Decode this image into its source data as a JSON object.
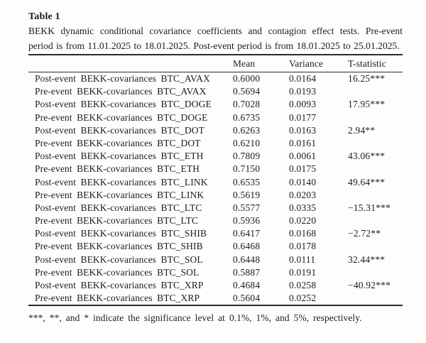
{
  "page": {
    "background_color": "#fdfdfc",
    "text_color": "#1d1d1d",
    "rule_color": "#2b2b2b"
  },
  "table": {
    "title": "Table 1",
    "caption": "BEKK dynamic conditional covariance coefficients and contagion effect tests. Pre-event period is from 11.01.2025 to 18.01.2025. Post-event period is from 18.01.2025 to 25.01.2025.",
    "header": {
      "label": "",
      "mean": "Mean",
      "variance": "Variance",
      "t_statistic": "T-statistic"
    },
    "rows": [
      {
        "label": "Post-event BEKK-covariances BTC_AVAX",
        "mean": "0.6000",
        "variance": "0.0164",
        "t_statistic": "16.25***"
      },
      {
        "label": "Pre-event BEKK-covariances BTC_AVAX",
        "mean": "0.5694",
        "variance": "0.0193",
        "t_statistic": ""
      },
      {
        "label": "Post-event BEKK-covariances BTC_DOGE",
        "mean": "0.7028",
        "variance": "0.0093",
        "t_statistic": "17.95***"
      },
      {
        "label": "Pre-event BEKK-covariances BTC_DOGE",
        "mean": "0.6735",
        "variance": "0.0177",
        "t_statistic": ""
      },
      {
        "label": "Post-event BEKK-covariances BTC_DOT",
        "mean": "0.6263",
        "variance": "0.0163",
        "t_statistic": "2.94**"
      },
      {
        "label": "Pre-event BEKK-covariances BTC_DOT",
        "mean": "0.6210",
        "variance": "0.0161",
        "t_statistic": ""
      },
      {
        "label": "Post-event BEKK-covariances BTC_ETH",
        "mean": "0.7809",
        "variance": "0.0061",
        "t_statistic": "43.06***"
      },
      {
        "label": "Pre-event BEKK-covariances BTC_ETH",
        "mean": "0.7150",
        "variance": "0.0175",
        "t_statistic": ""
      },
      {
        "label": "Post-event BEKK-covariances BTC_LINK",
        "mean": "0.6535",
        "variance": "0.0140",
        "t_statistic": "49.64***"
      },
      {
        "label": "Pre-event BEKK-covariances BTC_LINK",
        "mean": "0.5619",
        "variance": "0.0203",
        "t_statistic": ""
      },
      {
        "label": "Post-event BEKK-covariances BTC_LTC",
        "mean": "0.5577",
        "variance": "0.0335",
        "t_statistic": "−15.31***"
      },
      {
        "label": "Pre-event BEKK-covariances BTC_LTC",
        "mean": "0.5936",
        "variance": "0.0220",
        "t_statistic": ""
      },
      {
        "label": "Post-event BEKK-covariances BTC_SHIB",
        "mean": "0.6417",
        "variance": "0.0168",
        "t_statistic": "−2.72**"
      },
      {
        "label": "Pre-event BEKK-covariances BTC_SHIB",
        "mean": "0.6468",
        "variance": "0.0178",
        "t_statistic": ""
      },
      {
        "label": "Post-event BEKK-covariances BTC_SOL",
        "mean": "0.6448",
        "variance": "0.0111",
        "t_statistic": "32.44***"
      },
      {
        "label": "Pre-event BEKK-covariances BTC_SOL",
        "mean": "0.5887",
        "variance": "0.0191",
        "t_statistic": ""
      },
      {
        "label": "Post-event BEKK-covariances BTC_XRP",
        "mean": "0.4684",
        "variance": "0.0258",
        "t_statistic": "−40.92***"
      },
      {
        "label": "Pre-event BEKK-covariances BTC_XRP",
        "mean": "0.5604",
        "variance": "0.0252",
        "t_statistic": ""
      }
    ],
    "footnote": "***, **, and * indicate the significance level at 0.1%, 1%, and 5%, respectively."
  }
}
